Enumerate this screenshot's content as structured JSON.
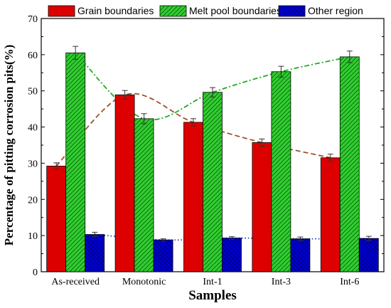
{
  "chart_data": {
    "type": "bar",
    "xlabel": "Samples",
    "ylabel": "Percentage of pitting corrosion pits(%)",
    "ylim": [
      0,
      70
    ],
    "yticks": [
      0,
      10,
      20,
      30,
      40,
      50,
      60,
      70
    ],
    "categories": [
      "As-received",
      "Monotonic",
      "Int-1",
      "Int-3",
      "Int-6"
    ],
    "legend_position": "top",
    "grid": false,
    "series": [
      {
        "name": "Grain boundaries",
        "color": "#dd0000",
        "pattern": "none",
        "values": [
          29.2,
          48.9,
          41.3,
          35.7,
          31.5
        ],
        "errors": [
          0.9,
          1.2,
          1.0,
          1.0,
          1.0
        ],
        "trend": {
          "style": "dashed",
          "color": "#a0522d"
        }
      },
      {
        "name": "Melt pool boundaries",
        "color": "#33cc33",
        "pattern": "forward-hatch",
        "values": [
          60.5,
          42.3,
          49.6,
          55.3,
          59.4
        ],
        "errors": [
          1.8,
          1.4,
          1.3,
          1.5,
          1.6
        ],
        "trend": {
          "style": "dash-dot",
          "color": "#22aa22"
        }
      },
      {
        "name": "Other region",
        "color": "#0000cc",
        "pattern": "back-hatch",
        "values": [
          10.3,
          8.8,
          9.3,
          9.1,
          9.2
        ],
        "errors": [
          0.6,
          0.3,
          0.4,
          0.5,
          0.6
        ],
        "trend": {
          "style": "dotted",
          "color": "#1e3fbf"
        }
      }
    ]
  }
}
